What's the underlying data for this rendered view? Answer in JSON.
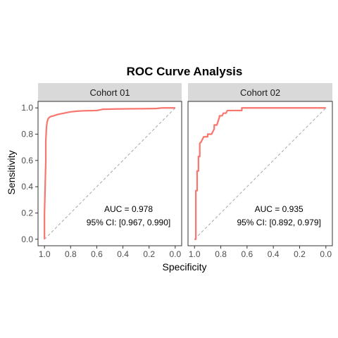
{
  "chart_data": {
    "type": "line",
    "title": "ROC Curve Analysis",
    "xlabel": "Specificity",
    "ylabel": "Sensitivity",
    "xlim": [
      1.0,
      0.0
    ],
    "ylim": [
      0.0,
      1.0
    ],
    "x_reversed": true,
    "x_ticks": [
      "1.0",
      "0.8",
      "0.6",
      "0.4",
      "0.2",
      "0.0"
    ],
    "y_ticks": [
      "0.0",
      "0.2",
      "0.4",
      "0.6",
      "0.8",
      "1.0"
    ],
    "grid": false,
    "reference_line": {
      "from": [
        1.0,
        0.0
      ],
      "to": [
        0.0,
        1.0
      ],
      "style": "dashed"
    },
    "curve_color": "#F8766D",
    "panels": [
      {
        "name": "Cohort 01",
        "auc_text": "AUC = 0.978",
        "ci_text": "95% CI: [0.967, 0.990]",
        "specificity": [
          1.0,
          1.0,
          0.995,
          0.99,
          0.99,
          0.985,
          0.98,
          0.975,
          0.97,
          0.96,
          0.95,
          0.93,
          0.9,
          0.85,
          0.8,
          0.75,
          0.7,
          0.6,
          0.55,
          0.45,
          0.35,
          0.25,
          0.15,
          0.1,
          0.05,
          0.0
        ],
        "sensitivity": [
          0.0,
          0.2,
          0.4,
          0.6,
          0.75,
          0.85,
          0.89,
          0.91,
          0.92,
          0.93,
          0.935,
          0.94,
          0.95,
          0.96,
          0.97,
          0.975,
          0.978,
          0.98,
          0.99,
          0.992,
          0.993,
          0.994,
          0.995,
          1.0,
          1.0,
          1.0
        ]
      },
      {
        "name": "Cohort 02",
        "auc_text": "AUC = 0.935",
        "ci_text": "95% CI: [0.892, 0.979]",
        "specificity": [
          1.0,
          0.99,
          0.99,
          0.98,
          0.98,
          0.97,
          0.97,
          0.96,
          0.96,
          0.95,
          0.94,
          0.93,
          0.92,
          0.9,
          0.9,
          0.87,
          0.85,
          0.85,
          0.83,
          0.81,
          0.81,
          0.79,
          0.78,
          0.76,
          0.75,
          0.72,
          0.69,
          0.66,
          0.64,
          0.64,
          0.5,
          0.3,
          0.1,
          0.0
        ],
        "sensitivity": [
          0.0,
          0.0,
          0.37,
          0.37,
          0.52,
          0.52,
          0.63,
          0.63,
          0.73,
          0.74,
          0.76,
          0.78,
          0.78,
          0.78,
          0.8,
          0.8,
          0.84,
          0.87,
          0.87,
          0.93,
          0.94,
          0.94,
          0.96,
          0.96,
          0.98,
          0.98,
          0.98,
          0.98,
          0.98,
          1.0,
          1.0,
          1.0,
          1.0,
          1.0
        ]
      }
    ]
  }
}
